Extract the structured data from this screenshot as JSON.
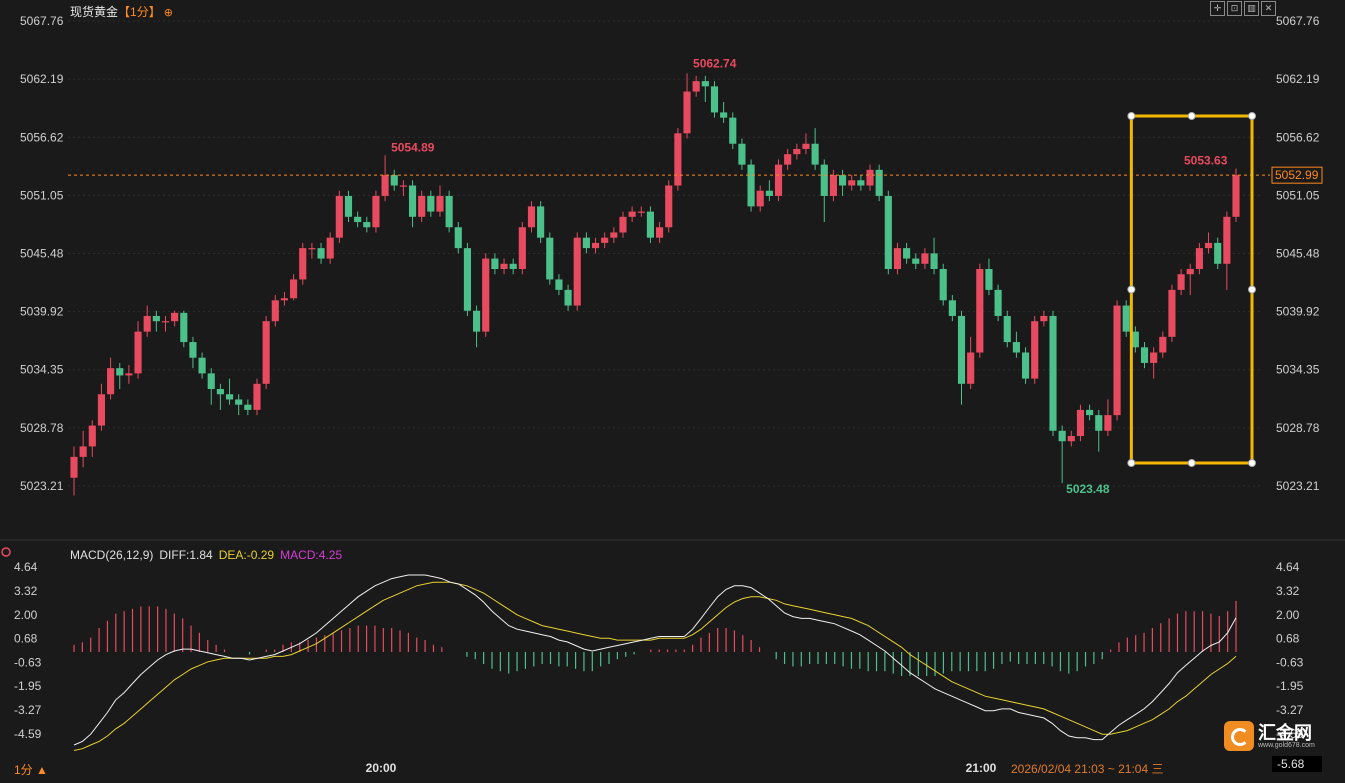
{
  "header": {
    "title": "现货黄金",
    "period": "【1分】",
    "icon": "target-icon"
  },
  "toolbar": {
    "icons": [
      "crosshair-icon",
      "zoom-icon",
      "panel-icon",
      "close-icon"
    ]
  },
  "colors": {
    "up": "#e84a5f",
    "down": "#4cc08a",
    "diff_line": "#f0f0f0",
    "dea_line": "#e6d130",
    "macd_label": "#d63cd6",
    "accent": "#ff8a1f",
    "box": "#f5b800",
    "current_line": "#ff8a1f"
  },
  "chart_data": [
    {
      "type": "candlestick",
      "title": "现货黄金",
      "price_ticks": [
        "5067.76",
        "5062.19",
        "5056.62",
        "5051.05",
        "5045.48",
        "5039.92",
        "5034.35",
        "5028.78",
        "5023.21"
      ],
      "ylim": [
        5021.0,
        5068.5
      ],
      "x_ticks": [
        "20:00",
        "21:00"
      ],
      "grid": true,
      "annotations": {
        "high_label": "5062.74",
        "low_label": "5023.48",
        "local_high_label": "5054.89",
        "recent_high_label": "5053.63",
        "current_price": "5052.99"
      },
      "candles": [
        [
          5024.0,
          5026.0,
          5022.3,
          5027.0
        ],
        [
          5026.0,
          5027.0,
          5025.0,
          5028.5
        ],
        [
          5027.0,
          5029.0,
          5026.0,
          5029.5
        ],
        [
          5029.0,
          5032.0,
          5028.5,
          5033.0
        ],
        [
          5032.0,
          5034.5,
          5031.5,
          5035.5
        ],
        [
          5034.5,
          5033.8,
          5032.5,
          5035.0
        ],
        [
          5033.8,
          5034.0,
          5033.0,
          5034.8
        ],
        [
          5034.0,
          5038.0,
          5033.5,
          5039.0
        ],
        [
          5038.0,
          5039.5,
          5037.5,
          5040.5
        ],
        [
          5039.5,
          5039.0,
          5038.0,
          5040.0
        ],
        [
          5039.0,
          5039.0,
          5038.0,
          5039.5
        ],
        [
          5039.0,
          5039.8,
          5038.5,
          5040.0
        ],
        [
          5039.8,
          5037.0,
          5036.5,
          5040.0
        ],
        [
          5037.0,
          5035.5,
          5034.5,
          5037.5
        ],
        [
          5035.5,
          5034.0,
          5033.5,
          5036.0
        ],
        [
          5034.0,
          5032.5,
          5031.0,
          5034.5
        ],
        [
          5032.5,
          5032.0,
          5030.5,
          5033.0
        ],
        [
          5032.0,
          5031.5,
          5031.0,
          5033.5
        ],
        [
          5031.5,
          5031.0,
          5030.0,
          5032.0
        ],
        [
          5031.0,
          5030.5,
          5030.0,
          5031.5
        ],
        [
          5030.5,
          5033.0,
          5030.0,
          5033.5
        ],
        [
          5033.0,
          5039.0,
          5032.5,
          5039.5
        ],
        [
          5039.0,
          5041.0,
          5038.5,
          5041.5
        ],
        [
          5041.0,
          5041.2,
          5040.5,
          5041.8
        ],
        [
          5041.2,
          5043.0,
          5041.0,
          5043.5
        ],
        [
          5043.0,
          5046.0,
          5042.5,
          5046.5
        ],
        [
          5046.0,
          5046.0,
          5045.0,
          5046.5
        ],
        [
          5046.0,
          5045.0,
          5044.5,
          5046.5
        ],
        [
          5045.0,
          5047.0,
          5044.5,
          5047.5
        ],
        [
          5047.0,
          5051.0,
          5046.5,
          5051.5
        ],
        [
          5051.0,
          5049.0,
          5048.5,
          5051.5
        ],
        [
          5049.0,
          5048.5,
          5048.0,
          5049.5
        ],
        [
          5048.5,
          5048.0,
          5047.5,
          5049.0
        ],
        [
          5048.0,
          5051.0,
          5047.5,
          5051.5
        ],
        [
          5051.0,
          5053.0,
          5050.5,
          5054.89
        ],
        [
          5053.0,
          5052.0,
          5051.5,
          5053.5
        ],
        [
          5052.0,
          5052.0,
          5051.0,
          5052.5
        ],
        [
          5052.0,
          5049.0,
          5048.0,
          5052.5
        ],
        [
          5049.0,
          5051.0,
          5048.5,
          5051.5
        ],
        [
          5051.0,
          5049.5,
          5049.0,
          5051.5
        ],
        [
          5049.5,
          5051.0,
          5049.0,
          5052.0
        ],
        [
          5051.0,
          5048.0,
          5047.5,
          5051.5
        ],
        [
          5048.0,
          5046.0,
          5045.5,
          5048.5
        ],
        [
          5046.0,
          5040.0,
          5039.5,
          5046.5
        ],
        [
          5040.0,
          5038.0,
          5036.5,
          5040.5
        ],
        [
          5038.0,
          5045.0,
          5037.5,
          5045.5
        ],
        [
          5045.0,
          5044.0,
          5043.5,
          5045.5
        ],
        [
          5044.0,
          5044.5,
          5043.5,
          5045.0
        ],
        [
          5044.5,
          5044.0,
          5043.5,
          5045.0
        ],
        [
          5044.0,
          5048.0,
          5043.5,
          5048.5
        ],
        [
          5048.0,
          5050.0,
          5047.5,
          5050.5
        ],
        [
          5050.0,
          5047.0,
          5046.5,
          5050.5
        ],
        [
          5047.0,
          5043.0,
          5042.5,
          5047.5
        ],
        [
          5043.0,
          5042.0,
          5041.5,
          5043.5
        ],
        [
          5042.0,
          5040.5,
          5040.0,
          5042.5
        ],
        [
          5040.5,
          5047.0,
          5040.0,
          5047.5
        ],
        [
          5047.0,
          5046.0,
          5045.5,
          5047.5
        ],
        [
          5046.0,
          5046.5,
          5045.5,
          5047.0
        ],
        [
          5046.5,
          5047.0,
          5046.0,
          5047.5
        ],
        [
          5047.0,
          5047.5,
          5046.5,
          5048.0
        ],
        [
          5047.5,
          5049.0,
          5047.0,
          5049.5
        ],
        [
          5049.0,
          5049.5,
          5048.5,
          5050.0
        ],
        [
          5049.5,
          5049.5,
          5049.0,
          5050.0
        ],
        [
          5049.5,
          5047.0,
          5046.5,
          5050.0
        ],
        [
          5047.0,
          5048.0,
          5046.5,
          5048.5
        ],
        [
          5048.0,
          5052.0,
          5047.5,
          5052.5
        ],
        [
          5052.0,
          5057.0,
          5051.5,
          5057.5
        ],
        [
          5057.0,
          5061.0,
          5056.5,
          5062.74
        ],
        [
          5061.0,
          5062.0,
          5060.5,
          5062.5
        ],
        [
          5062.0,
          5061.5,
          5060.0,
          5062.5
        ],
        [
          5061.5,
          5059.0,
          5058.5,
          5062.0
        ],
        [
          5059.0,
          5058.5,
          5058.0,
          5060.0
        ],
        [
          5058.5,
          5056.0,
          5055.5,
          5059.0
        ],
        [
          5056.0,
          5054.0,
          5053.5,
          5056.5
        ],
        [
          5054.0,
          5050.0,
          5049.5,
          5054.5
        ],
        [
          5050.0,
          5051.5,
          5049.5,
          5052.0
        ],
        [
          5051.5,
          5051.0,
          5050.5,
          5052.5
        ],
        [
          5051.0,
          5054.0,
          5050.5,
          5054.5
        ],
        [
          5054.0,
          5055.0,
          5053.5,
          5055.5
        ],
        [
          5055.0,
          5055.5,
          5054.5,
          5056.0
        ],
        [
          5055.5,
          5056.0,
          5055.0,
          5057.0
        ],
        [
          5056.0,
          5054.0,
          5053.5,
          5057.5
        ],
        [
          5054.0,
          5051.0,
          5048.5,
          5054.5
        ],
        [
          5051.0,
          5053.0,
          5050.5,
          5053.5
        ],
        [
          5053.0,
          5052.0,
          5051.0,
          5053.5
        ],
        [
          5052.0,
          5052.5,
          5051.5,
          5053.0
        ],
        [
          5052.5,
          5052.0,
          5051.5,
          5053.0
        ],
        [
          5052.0,
          5053.5,
          5051.5,
          5054.0
        ],
        [
          5053.5,
          5051.0,
          5050.5,
          5054.0
        ],
        [
          5051.0,
          5044.0,
          5043.5,
          5051.5
        ],
        [
          5044.0,
          5046.0,
          5043.5,
          5046.5
        ],
        [
          5046.0,
          5045.0,
          5044.5,
          5046.5
        ],
        [
          5045.0,
          5044.5,
          5044.0,
          5045.5
        ],
        [
          5044.5,
          5045.5,
          5044.0,
          5046.0
        ],
        [
          5045.5,
          5044.0,
          5043.5,
          5047.0
        ],
        [
          5044.0,
          5041.0,
          5040.5,
          5044.5
        ],
        [
          5041.0,
          5039.5,
          5039.0,
          5041.5
        ],
        [
          5039.5,
          5033.0,
          5031.0,
          5040.0
        ],
        [
          5033.0,
          5036.0,
          5032.5,
          5037.5
        ],
        [
          5036.0,
          5044.0,
          5035.5,
          5044.5
        ],
        [
          5044.0,
          5042.0,
          5041.5,
          5045.0
        ],
        [
          5042.0,
          5039.5,
          5039.0,
          5042.5
        ],
        [
          5039.5,
          5037.0,
          5036.5,
          5040.0
        ],
        [
          5037.0,
          5036.0,
          5035.5,
          5038.0
        ],
        [
          5036.0,
          5033.5,
          5033.0,
          5036.5
        ],
        [
          5033.5,
          5039.0,
          5033.0,
          5039.5
        ],
        [
          5039.0,
          5039.5,
          5038.5,
          5040.0
        ],
        [
          5039.5,
          5028.5,
          5028.0,
          5040.0
        ],
        [
          5028.5,
          5027.5,
          5023.48,
          5029.0
        ],
        [
          5027.5,
          5028.0,
          5027.0,
          5028.5
        ],
        [
          5028.0,
          5030.5,
          5027.5,
          5031.0
        ],
        [
          5030.5,
          5030.0,
          5029.5,
          5031.0
        ],
        [
          5030.0,
          5028.5,
          5026.5,
          5030.5
        ],
        [
          5028.5,
          5030.0,
          5028.0,
          5031.5
        ],
        [
          5030.0,
          5040.5,
          5029.5,
          5041.0
        ],
        [
          5040.5,
          5038.0,
          5037.5,
          5041.0
        ],
        [
          5038.0,
          5036.5,
          5036.0,
          5038.5
        ],
        [
          5036.5,
          5035.0,
          5034.5,
          5037.0
        ],
        [
          5035.0,
          5036.0,
          5033.5,
          5036.5
        ],
        [
          5036.0,
          5037.5,
          5035.5,
          5038.0
        ],
        [
          5037.5,
          5042.0,
          5037.0,
          5042.5
        ],
        [
          5042.0,
          5043.5,
          5041.5,
          5044.0
        ],
        [
          5043.5,
          5044.0,
          5041.5,
          5044.5
        ],
        [
          5044.0,
          5046.0,
          5043.5,
          5046.5
        ],
        [
          5046.0,
          5046.5,
          5045.5,
          5047.5
        ],
        [
          5046.5,
          5044.5,
          5044.0,
          5047.0
        ],
        [
          5044.5,
          5049.0,
          5042.0,
          5049.5
        ],
        [
          5049.0,
          5052.99,
          5048.5,
          5053.63
        ]
      ],
      "candle_format": [
        "open",
        "close",
        "low",
        "high"
      ]
    },
    {
      "type": "macd",
      "title": "MACD(26,12,9)",
      "labels": {
        "diff": "DIFF:1.84",
        "dea": "DEA:-0.29",
        "macd": "MACD:4.25"
      },
      "axis_ticks": [
        "4.64",
        "3.32",
        "2.00",
        "0.68",
        "-0.63",
        "-1.95",
        "-3.27",
        "-4.59"
      ],
      "current_value": "-5.68",
      "ylim": [
        -5.9,
        4.9
      ],
      "diff": [
        -5.2,
        -5.0,
        -4.6,
        -4.0,
        -3.4,
        -2.7,
        -2.3,
        -1.8,
        -1.3,
        -0.9,
        -0.5,
        -0.2,
        0.0,
        0.1,
        0.1,
        0.0,
        -0.1,
        -0.2,
        -0.3,
        -0.4,
        -0.4,
        -0.5,
        -0.4,
        -0.3,
        -0.2,
        0.0,
        0.2,
        0.4,
        0.7,
        1.0,
        1.4,
        1.8,
        2.2,
        2.6,
        3.0,
        3.3,
        3.6,
        3.8,
        4.0,
        4.1,
        4.2,
        4.2,
        4.2,
        4.1,
        4.0,
        3.8,
        3.7,
        3.4,
        3.1,
        2.7,
        2.2,
        1.8,
        1.4,
        1.2,
        1.1,
        1.0,
        0.9,
        0.8,
        0.6,
        0.5,
        0.3,
        0.1,
        0.0,
        0.1,
        0.2,
        0.3,
        0.4,
        0.5,
        0.6,
        0.7,
        0.8,
        0.8,
        0.8,
        0.8,
        1.2,
        1.8,
        2.4,
        3.0,
        3.4,
        3.6,
        3.6,
        3.5,
        3.2,
        2.9,
        2.5,
        2.1,
        1.9,
        1.8,
        1.8,
        1.7,
        1.6,
        1.5,
        1.3,
        1.1,
        0.9,
        0.6,
        0.3,
        0.0,
        -0.4,
        -0.8,
        -1.2,
        -1.5,
        -1.8,
        -2.1,
        -2.3,
        -2.5,
        -2.7,
        -2.9,
        -3.1,
        -3.3,
        -3.3,
        -3.2,
        -3.2,
        -3.4,
        -3.5,
        -3.6,
        -3.7,
        -4.0,
        -4.4,
        -4.7,
        -4.8,
        -4.8,
        -4.9,
        -4.9,
        -4.5,
        -4.1,
        -3.8,
        -3.5,
        -3.2,
        -2.8,
        -2.3,
        -1.8,
        -1.2,
        -0.8,
        -0.4,
        0.0,
        0.3,
        0.5,
        1.0,
        1.84
      ],
      "dea": [
        -5.5,
        -5.4,
        -5.2,
        -5.0,
        -4.7,
        -4.3,
        -4.0,
        -3.6,
        -3.2,
        -2.8,
        -2.4,
        -2.0,
        -1.6,
        -1.3,
        -1.0,
        -0.8,
        -0.6,
        -0.5,
        -0.4,
        -0.4,
        -0.4,
        -0.4,
        -0.4,
        -0.4,
        -0.3,
        -0.3,
        -0.2,
        0.0,
        0.2,
        0.4,
        0.7,
        1.0,
        1.3,
        1.6,
        1.9,
        2.2,
        2.5,
        2.8,
        3.0,
        3.2,
        3.4,
        3.6,
        3.7,
        3.8,
        3.8,
        3.8,
        3.7,
        3.6,
        3.4,
        3.2,
        2.9,
        2.6,
        2.3,
        2.0,
        1.8,
        1.6,
        1.4,
        1.3,
        1.2,
        1.1,
        1.0,
        0.9,
        0.8,
        0.7,
        0.7,
        0.6,
        0.6,
        0.6,
        0.6,
        0.6,
        0.7,
        0.7,
        0.7,
        0.7,
        0.9,
        1.2,
        1.6,
        2.0,
        2.4,
        2.7,
        2.9,
        3.0,
        3.0,
        2.9,
        2.8,
        2.6,
        2.5,
        2.4,
        2.3,
        2.2,
        2.1,
        2.0,
        1.9,
        1.8,
        1.6,
        1.4,
        1.1,
        0.8,
        0.5,
        0.2,
        -0.2,
        -0.5,
        -0.8,
        -1.1,
        -1.4,
        -1.7,
        -1.9,
        -2.1,
        -2.3,
        -2.5,
        -2.6,
        -2.7,
        -2.8,
        -2.9,
        -3.0,
        -3.1,
        -3.2,
        -3.4,
        -3.6,
        -3.8,
        -4.0,
        -4.2,
        -4.4,
        -4.6,
        -4.6,
        -4.5,
        -4.4,
        -4.2,
        -4.0,
        -3.8,
        -3.5,
        -3.2,
        -2.8,
        -2.5,
        -2.1,
        -1.7,
        -1.3,
        -1.0,
        -0.7,
        -0.29
      ]
    }
  ],
  "footer": {
    "period_label": "1分 ▲",
    "time_range": "2026/02/04 21:03 ~ 21:04 三",
    "logo_text": "汇金网",
    "logo_sub": "www.gold678.com"
  }
}
